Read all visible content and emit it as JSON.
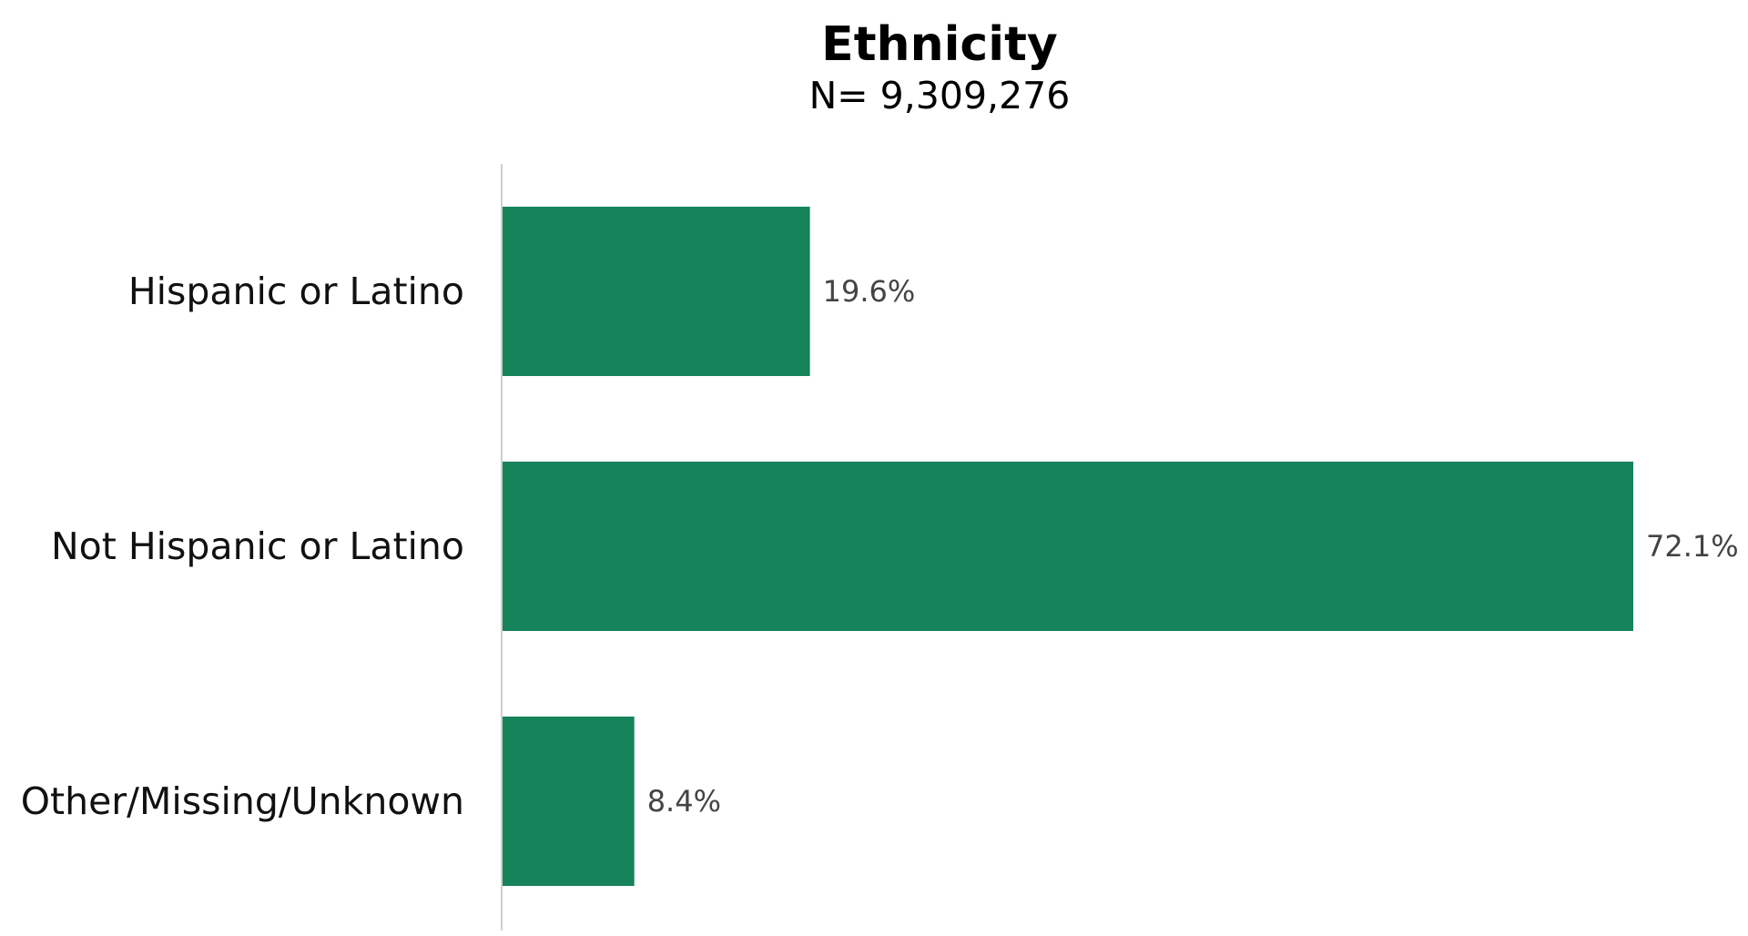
{
  "chart_data": {
    "type": "bar",
    "orientation": "horizontal",
    "title": "Ethnicity",
    "subtitle": "N= 9,309,276",
    "categories": [
      "Hispanic or Latino",
      "Not Hispanic or Latino",
      "Other/Missing/Unknown"
    ],
    "values": [
      19.6,
      72.1,
      8.4
    ],
    "value_labels": [
      "19.6%",
      "72.1%",
      "8.4%"
    ],
    "unit": "%",
    "xlim": [
      0,
      72.1
    ],
    "grid": false,
    "legend": "none",
    "bar_color": "#17835a"
  }
}
